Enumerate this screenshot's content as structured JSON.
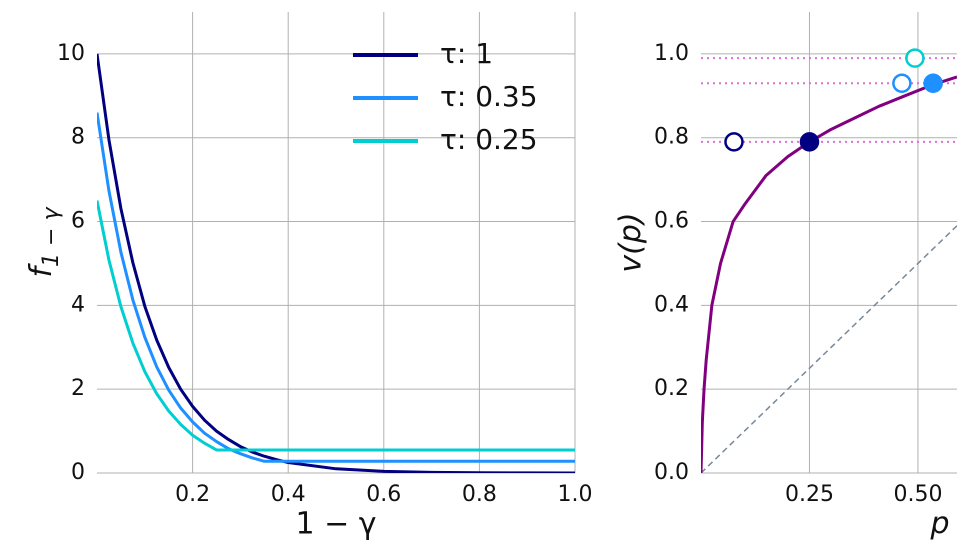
{
  "chart_data": [
    {
      "type": "line",
      "xlabel": "1 − γ",
      "ylabel": "f",
      "ylabel_subscript": "1 − γ",
      "xlim": [
        0,
        1
      ],
      "ylim": [
        0,
        11
      ],
      "xticks": [
        0.2,
        0.4,
        0.6,
        0.8,
        {
          "value": 1,
          "label": "1.0"
        }
      ],
      "yticks": [
        0,
        2,
        4,
        6,
        8,
        10
      ],
      "grid": true,
      "legend": "upper right",
      "x": [
        0,
        0.025,
        0.05,
        0.075,
        0.1,
        0.125,
        0.15,
        0.175,
        0.2,
        0.225,
        0.25,
        0.275,
        0.3,
        0.325,
        0.35,
        0.375,
        0.4,
        0.5,
        0.6,
        0.7,
        0.8,
        0.9,
        1.0
      ],
      "series": [
        {
          "name": "τ: 1",
          "color": "#000080",
          "values": [
            10,
            7.95,
            6.31,
            5.02,
            3.98,
            3.17,
            2.52,
            2.0,
            1.59,
            1.26,
            1.0,
            0.8,
            0.63,
            0.5,
            0.4,
            0.32,
            0.25,
            0.1,
            0.04,
            0.016,
            0.006,
            0.003,
            0.001
          ]
        },
        {
          "name": "τ: 0.35",
          "color": "#1e90ff",
          "values": [
            8.6,
            6.73,
            5.27,
            4.13,
            3.24,
            2.53,
            1.98,
            1.55,
            1.22,
            0.95,
            0.75,
            0.58,
            0.46,
            0.36,
            0.28,
            0.28,
            0.28,
            0.28,
            0.28,
            0.28,
            0.28,
            0.28,
            0.28
          ]
        },
        {
          "name": "τ: 0.25",
          "color": "#00ced1",
          "values": [
            6.5,
            5.08,
            3.97,
            3.1,
            2.42,
            1.89,
            1.48,
            1.16,
            0.9,
            0.71,
            0.55,
            0.55,
            0.55,
            0.55,
            0.55,
            0.55,
            0.55,
            0.55,
            0.55,
            0.55,
            0.55,
            0.55,
            0.55
          ]
        }
      ]
    },
    {
      "type": "line",
      "xlabel": "p",
      "ylabel": "v(p)",
      "xlim": [
        0,
        0.59
      ],
      "ylim": [
        0,
        1.1
      ],
      "xticks": [
        0.25,
        {
          "value": 0.5,
          "label": "0.50"
        }
      ],
      "yticks": [
        {
          "value": 0,
          "label": "0.0"
        },
        0.2,
        0.4,
        0.6,
        0.8,
        {
          "value": 1,
          "label": "1.0"
        }
      ],
      "grid": true,
      "x": [
        0,
        0.003,
        0.007,
        0.012,
        0.025,
        0.045,
        0.074,
        0.1,
        0.15,
        0.2,
        0.25,
        0.3,
        0.35,
        0.41,
        0.47,
        0.53,
        0.59
      ],
      "series": [
        {
          "color": "#800080",
          "values": [
            0,
            0.12,
            0.2,
            0.27,
            0.4,
            0.5,
            0.6,
            0.64,
            0.71,
            0.755,
            0.79,
            0.82,
            0.845,
            0.875,
            0.9,
            0.925,
            0.945
          ]
        }
      ],
      "reference_line": {
        "x": [
          0,
          0.59
        ],
        "values": [
          0,
          0.59
        ],
        "color": "#778899"
      },
      "hlines": [
        0.79,
        0.93,
        0.99
      ],
      "hline_color": "#da70d6",
      "points": [
        {
          "x": 0.076,
          "y": 0.79,
          "color": "#000080",
          "filled": false
        },
        {
          "x": 0.25,
          "y": 0.79,
          "color": "#000080",
          "filled": true
        },
        {
          "x": 0.463,
          "y": 0.93,
          "color": "#1e90ff",
          "filled": false
        },
        {
          "x": 0.535,
          "y": 0.93,
          "color": "#1e90ff",
          "filled": true
        },
        {
          "x": 0.493,
          "y": 0.99,
          "color": "#00ced1",
          "filled": false
        }
      ]
    }
  ]
}
